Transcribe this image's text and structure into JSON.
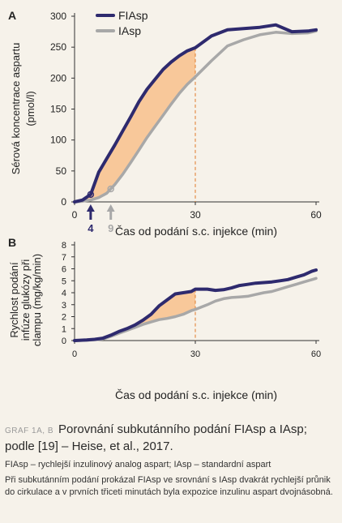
{
  "chart_data": [
    {
      "panel": "A",
      "type": "line",
      "xlabel": "Čas od podání s.c. injekce (min)",
      "ylabel": [
        "Sérová koncentrace aspartu",
        "(pmol/l)"
      ],
      "xticks": [
        0,
        30,
        60
      ],
      "yticks": [
        0,
        50,
        100,
        150,
        200,
        250,
        300
      ],
      "xlim": [
        0,
        60
      ],
      "ylim": [
        0,
        300
      ],
      "legend_position": "top-left",
      "vline_x": 30,
      "markers": [
        {
          "x": 4,
          "label": "4",
          "color": "#2e2a6e"
        },
        {
          "x": 9,
          "label": "9",
          "color": "#a8a8a8"
        }
      ],
      "series": [
        {
          "name": "FIAsp",
          "color": "#2e2a6e",
          "x": [
            0,
            2,
            4,
            6,
            8,
            10,
            12,
            14,
            16,
            18,
            20,
            22,
            24,
            26,
            28,
            30,
            34,
            38,
            42,
            46,
            50,
            54,
            58,
            60
          ],
          "values": [
            0,
            3,
            12,
            48,
            70,
            92,
            115,
            138,
            162,
            182,
            198,
            214,
            226,
            236,
            244,
            249,
            268,
            278,
            280,
            282,
            286,
            275,
            276,
            278
          ]
        },
        {
          "name": "IAsp",
          "color": "#a8a8a8",
          "x": [
            0,
            2,
            4,
            6,
            8,
            10,
            12,
            14,
            16,
            18,
            20,
            22,
            24,
            26,
            28,
            30,
            34,
            38,
            42,
            46,
            50,
            54,
            58,
            60
          ],
          "values": [
            0,
            1,
            3,
            7,
            14,
            28,
            45,
            64,
            84,
            104,
            122,
            140,
            158,
            175,
            190,
            202,
            228,
            252,
            262,
            270,
            274,
            272,
            273,
            276
          ]
        }
      ]
    },
    {
      "panel": "B",
      "type": "line",
      "xlabel": "Čas od podání s.c. injekce (min)",
      "ylabel": [
        "Rychlost podání",
        "infúze glukózy při",
        "clampu (mg/kg/min)"
      ],
      "xticks": [
        0,
        30,
        60
      ],
      "yticks": [
        0,
        1,
        2,
        3,
        4,
        5,
        6,
        7,
        8
      ],
      "xlim": [
        0,
        60
      ],
      "ylim": [
        0,
        8
      ],
      "vline_x": 30,
      "series": [
        {
          "name": "FIAsp",
          "color": "#2e2a6e",
          "x": [
            0,
            3,
            5,
            7,
            9,
            11,
            13,
            15,
            17,
            19,
            21,
            23,
            25,
            27,
            29,
            30,
            33,
            35,
            37,
            39,
            41,
            43,
            45,
            47,
            49,
            51,
            53,
            55,
            57,
            59,
            60
          ],
          "values": [
            0,
            0.05,
            0.1,
            0.2,
            0.45,
            0.75,
            1.0,
            1.3,
            1.7,
            2.2,
            2.9,
            3.4,
            3.9,
            4.0,
            4.1,
            4.3,
            4.3,
            4.2,
            4.25,
            4.4,
            4.6,
            4.7,
            4.8,
            4.85,
            4.9,
            5.0,
            5.1,
            5.3,
            5.5,
            5.8,
            5.9
          ]
        },
        {
          "name": "IAsp",
          "color": "#a8a8a8",
          "x": [
            0,
            3,
            5,
            7,
            9,
            11,
            13,
            15,
            17,
            19,
            21,
            23,
            25,
            27,
            29,
            30,
            33,
            35,
            37,
            39,
            41,
            43,
            45,
            47,
            49,
            51,
            53,
            55,
            57,
            59,
            60
          ],
          "values": [
            0,
            0.03,
            0.07,
            0.12,
            0.35,
            0.6,
            0.85,
            1.1,
            1.35,
            1.55,
            1.75,
            1.85,
            2.0,
            2.2,
            2.5,
            2.6,
            3.0,
            3.3,
            3.5,
            3.6,
            3.65,
            3.7,
            3.85,
            4.0,
            4.1,
            4.3,
            4.5,
            4.7,
            4.9,
            5.1,
            5.2
          ]
        }
      ]
    }
  ],
  "caption": {
    "tag": "GRAF 1A, B",
    "title": "Porovnání subkutánního podání FIAsp a IAsp; podle [19] – Heise, et al., 2017.",
    "subtitle": "FIAsp – rychlejší inzulinový analog aspart; IAsp – standardní aspart",
    "note": "Při subkutánním podání prokázal FIAsp ve srovnání s IAsp dvakrát rychlejší průnik do cirkulace a v prvních třiceti minutách byla expozice inzulinu aspart dvojnásobná."
  },
  "colors": {
    "fiasp": "#2e2a6e",
    "iasp": "#a8a8a8",
    "fill": "#f8c89a",
    "vline": "#e07b2a",
    "background": "#f6f2ea"
  }
}
